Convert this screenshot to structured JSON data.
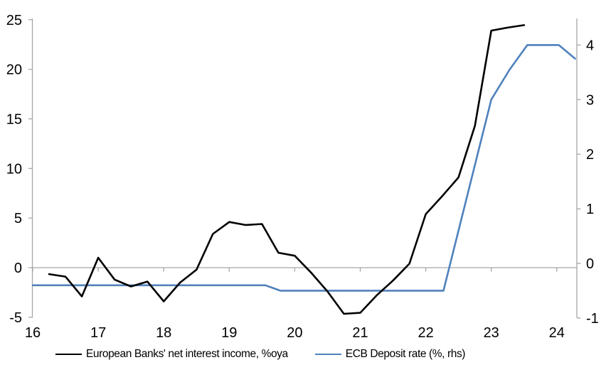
{
  "chart_data": {
    "type": "line",
    "title": "",
    "x_axis": {
      "ticks": [
        16,
        17,
        18,
        19,
        20,
        21,
        22,
        23,
        24
      ],
      "tick_labels": [
        "16",
        "17",
        "18",
        "19",
        "20",
        "21",
        "22",
        "23",
        "24"
      ],
      "range": [
        16,
        24.31
      ],
      "tick_position": "on-zero-line-labels-low"
    },
    "y_left_axis": {
      "ticks": [
        -5,
        0,
        5,
        10,
        15,
        20,
        25
      ],
      "tick_labels": [
        "-5",
        "0",
        "5",
        "10",
        "15",
        "20",
        "25"
      ],
      "range": [
        -5,
        25
      ]
    },
    "y_right_axis": {
      "ticks": [
        -1,
        0,
        1,
        2,
        3,
        4
      ],
      "tick_labels": [
        "-1",
        "0",
        "1",
        "2",
        "3",
        "4"
      ],
      "range": [
        -1,
        4.53
      ]
    },
    "grid": "zero-line-only",
    "legend_position": "bottom",
    "series": [
      {
        "name": "European Banks' net interest income, %oya",
        "axis": "left",
        "color": "#000000",
        "x": [
          16.25,
          16.5,
          16.75,
          17.0,
          17.25,
          17.5,
          17.75,
          18.0,
          18.25,
          18.5,
          18.75,
          19.0,
          19.25,
          19.5,
          19.75,
          20.0,
          20.25,
          20.5,
          20.75,
          21.0,
          21.25,
          21.5,
          21.75,
          22.0,
          22.25,
          22.5,
          22.75,
          23.0,
          23.25,
          23.5
        ],
        "values": [
          -0.65,
          -0.9,
          -2.9,
          1.0,
          -1.2,
          -1.9,
          -1.4,
          -3.4,
          -1.5,
          -0.2,
          3.4,
          4.6,
          4.3,
          4.4,
          1.5,
          1.2,
          -0.5,
          -2.4,
          -4.65,
          -4.55,
          -2.8,
          -1.3,
          0.4,
          5.4,
          7.2,
          9.1,
          14.3,
          23.9,
          24.2,
          24.45
        ]
      },
      {
        "name": "ECB Deposit rate (%, rhs)",
        "axis": "right",
        "color": "#4f81bd",
        "x": [
          16.0,
          19.55,
          19.78,
          22.27,
          23.0,
          23.28,
          23.55,
          24.03,
          24.28
        ],
        "values": [
          -0.4,
          -0.4,
          -0.5,
          -0.5,
          3.0,
          3.55,
          4.0,
          4.0,
          3.75
        ]
      }
    ]
  },
  "legend": {
    "items": [
      {
        "label": "European Banks' net interest income, %oya",
        "color": "#000000"
      },
      {
        "label": "ECB Deposit rate (%, rhs)",
        "color": "#4f81bd"
      }
    ]
  },
  "colors": {
    "axis": "#a6a6a6",
    "text": "#000000",
    "background": "#ffffff",
    "series_nii": "#000000",
    "series_ecb": "#4f81bd"
  }
}
